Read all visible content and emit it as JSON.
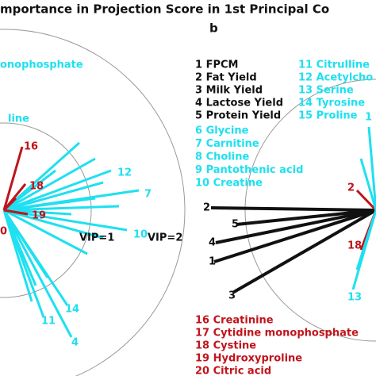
{
  "header": {
    "title": "mportance in Projection Score in 1st Principal Co",
    "panel_label": "b"
  },
  "left_panel": {
    "labels": [
      {
        "text": "onophosphate",
        "color": "cyan"
      },
      {
        "text": "line",
        "color": "cyan"
      },
      {
        "text": "16",
        "color": "red"
      },
      {
        "text": "18",
        "color": "red"
      },
      {
        "text": "19",
        "color": "red"
      },
      {
        "text": "0",
        "color": "red"
      },
      {
        "text": "12",
        "color": "cyan"
      },
      {
        "text": "7",
        "color": "cyan"
      },
      {
        "text": "10",
        "color": "cyan"
      },
      {
        "text": "14",
        "color": "cyan"
      },
      {
        "text": "11",
        "color": "cyan"
      },
      {
        "text": "4",
        "color": "cyan"
      }
    ],
    "circle_labels": [
      "VIP=1",
      "VIP=2"
    ]
  },
  "right_panel": {
    "legend_black": [
      "1 FPCM",
      "2 Fat Yield",
      "3 Milk Yield",
      "4 Lactose Yield",
      "5 Protein Yield"
    ],
    "legend_cyan_left": [
      "6 Glycine",
      "7 Carnitine",
      "8 Choline",
      "9 Pantothenic acid",
      "10 Creatine"
    ],
    "legend_cyan_right": [
      "11 Citrulline",
      "12 Acetylcho",
      "13 Serine",
      "14 Tyrosine",
      "15 Proline"
    ],
    "legend_red": [
      "16 Creatinine",
      "17 Cytidine monophosphate",
      "18 Cystine",
      "19 Hydroxyproline",
      "20 Citric acid"
    ],
    "labels": [
      {
        "text": "2",
        "color": "black"
      },
      {
        "text": "5",
        "color": "black"
      },
      {
        "text": "4",
        "color": "black"
      },
      {
        "text": "1",
        "color": "black"
      },
      {
        "text": "3",
        "color": "black"
      },
      {
        "text": "2",
        "color": "red"
      },
      {
        "text": "18",
        "color": "red"
      },
      {
        "text": "13",
        "color": "cyan"
      },
      {
        "text": "1",
        "color": "cyan"
      }
    ]
  }
}
